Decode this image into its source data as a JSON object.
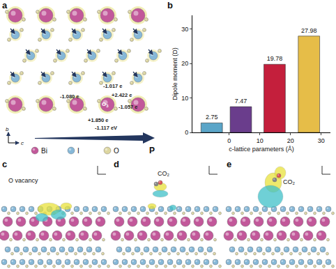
{
  "panel_a": {
    "label": "a",
    "charges": [
      {
        "atom": "O1",
        "text": "-1.017 e"
      },
      {
        "atom": "O2",
        "text": "-1.080 e"
      },
      {
        "atom": "I",
        "text": "+2.422 e"
      },
      {
        "atom": "O3",
        "text": "-1.057 e"
      },
      {
        "atom": "Bi",
        "text": "+1.850 e"
      },
      {
        "atom": "O4",
        "text": "-1.117 eV"
      }
    ],
    "axes": [
      "b",
      "c"
    ],
    "polarization": "P",
    "legend": [
      "Bi",
      "I",
      "O"
    ]
  },
  "chart_data": {
    "label": "b",
    "type": "bar",
    "x": [
      -5.7,
      3.8,
      14.8,
      26
    ],
    "values": [
      2.75,
      7.47,
      19.78,
      27.98
    ],
    "colors": [
      "#5aa5c8",
      "#6a3d8c",
      "#c41f3c",
      "#e6bd48"
    ],
    "x_label": "c-lattice parameters (Å)",
    "y_label": "Dipole moment (D)",
    "xlim": [
      -12,
      33
    ],
    "xticks": [
      0,
      10,
      20,
      30
    ],
    "ylim": [
      0,
      34
    ],
    "yticks": [
      0,
      10,
      20,
      30
    ],
    "data_labels": true,
    "grid": false
  },
  "panel_c": {
    "label": "c",
    "title": "O vacancy"
  },
  "panel_d": {
    "label": "d",
    "title": "CO₂"
  },
  "panel_e": {
    "label": "e",
    "title": "CO₂"
  }
}
